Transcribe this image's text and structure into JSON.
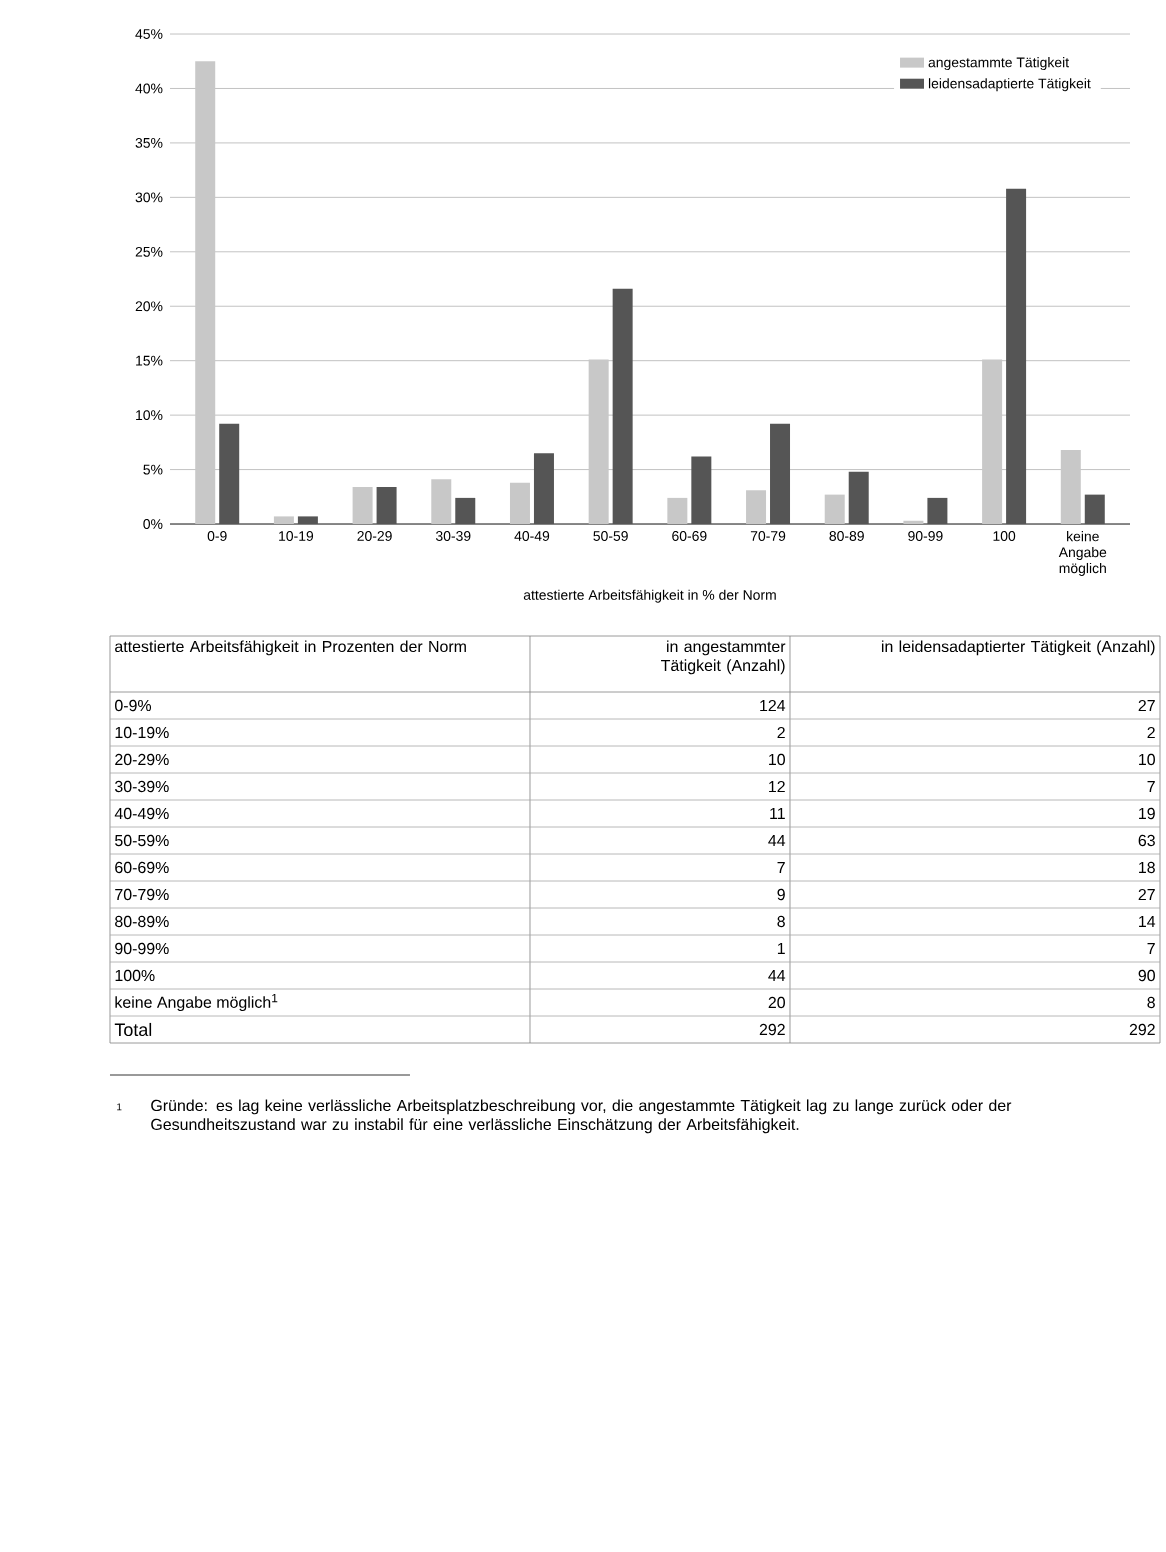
{
  "chart_data": {
    "type": "bar",
    "xlabel": "attestierte Arbeitsfähigkeit in % der Norm",
    "categories": [
      "0-9",
      "10-19",
      "20-29",
      "30-39",
      "40-49",
      "50-59",
      "60-69",
      "70-79",
      "80-89",
      "90-99",
      "100",
      "keine Angabe möglich"
    ],
    "series": [
      {
        "name": "angestammte Tätigkeit",
        "color": "#c8c8c8",
        "values": [
          42.5,
          0.7,
          3.4,
          4.1,
          3.8,
          15.1,
          2.4,
          3.1,
          2.7,
          0.3,
          15.1,
          6.8
        ]
      },
      {
        "name": "leidensadaptierte Tätigkeit",
        "color": "#555555",
        "values": [
          9.2,
          0.7,
          3.4,
          2.4,
          6.5,
          21.6,
          6.2,
          9.2,
          4.8,
          2.4,
          30.8,
          2.7
        ]
      }
    ],
    "ylim": [
      0,
      45
    ],
    "yticks": [
      {
        "value": 0,
        "label": "0%"
      },
      {
        "value": 5,
        "label": "5%"
      },
      {
        "value": 10,
        "label": "10%"
      },
      {
        "value": 15,
        "label": "15%"
      },
      {
        "value": 20,
        "label": "20%"
      },
      {
        "value": 25,
        "label": "25%"
      },
      {
        "value": 30,
        "label": "30%"
      },
      {
        "value": 35,
        "label": "35%"
      },
      {
        "value": 40,
        "label": "40%"
      },
      {
        "value": 45,
        "label": "45%"
      }
    ],
    "grid": "y",
    "legend": "top right",
    "annotations": [
      "attestierte Arbeitsfähigkeit in Prozenten der Norm",
      "in angestammter Tätigkeit (Anzahl)",
      "in leidensadaptierter Tätigkeit (Anzahl)",
      "0-9%",
      "124",
      "27",
      "10-19%",
      "2",
      "2",
      "20-29%",
      "10",
      "10",
      "30-39%",
      "12",
      "7",
      "40-49%",
      "11",
      "19",
      "50-59%",
      "44",
      "63",
      "60-69%",
      "7",
      "18",
      "70-79%",
      "9",
      "27",
      "80-89%",
      "8",
      "14",
      "90-99%",
      "1",
      "7",
      "100%",
      "44",
      "90",
      "keine Angabe möglich$^{1}$",
      "20",
      "8",
      "Total",
      "292",
      "292",
      "1",
      "Gründe: es lag keine verlässliche Arbeitsplatzbeschreibung vor, die angestammte Tätigkeit lag zu lange zurück oder der Gesundheitszustand war zu instabil für eine verlässliche Einschätzung der Arbeitsfähigkeit."
    ]
  }
}
